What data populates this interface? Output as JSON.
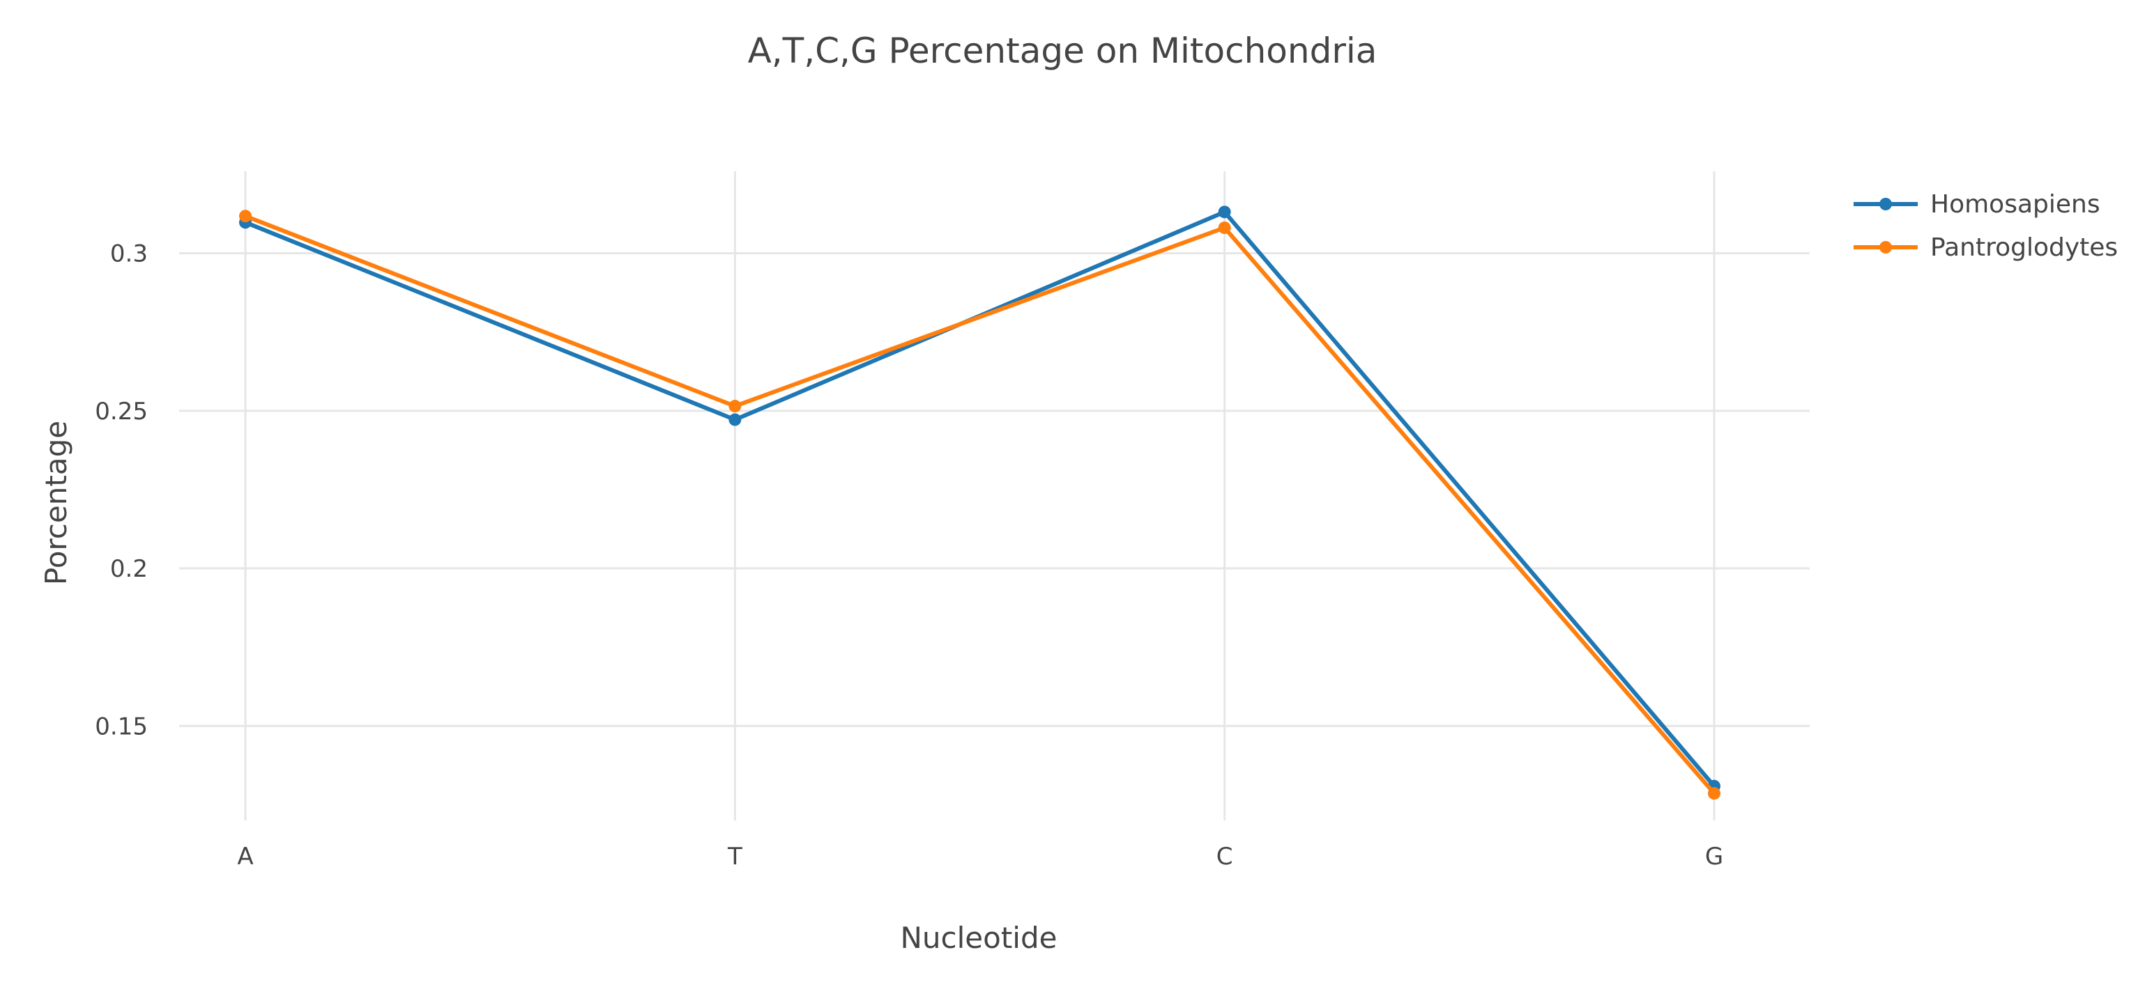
{
  "chart_data": {
    "type": "line",
    "title": "A,T,C,G Percentage on Mitochondria",
    "xlabel": "Nucleotide",
    "ylabel": "Porcentage",
    "categories": [
      "A",
      "T",
      "C",
      "G"
    ],
    "ylim": [
      0.12,
      0.326
    ],
    "yticks": [
      0.15,
      0.2,
      0.25,
      0.3
    ],
    "ytick_labels": [
      "0.15",
      "0.2",
      "0.25",
      "0.3"
    ],
    "grid": true,
    "legend_position": "top-right",
    "series": [
      {
        "name": "Homosapiens",
        "color": "#1f77b4",
        "values": [
          0.3098,
          0.2472,
          0.3131,
          0.1309
        ]
      },
      {
        "name": "Pantroglodytes",
        "color": "#ff7f0e",
        "values": [
          0.3118,
          0.2515,
          0.3081,
          0.1286
        ]
      }
    ]
  }
}
